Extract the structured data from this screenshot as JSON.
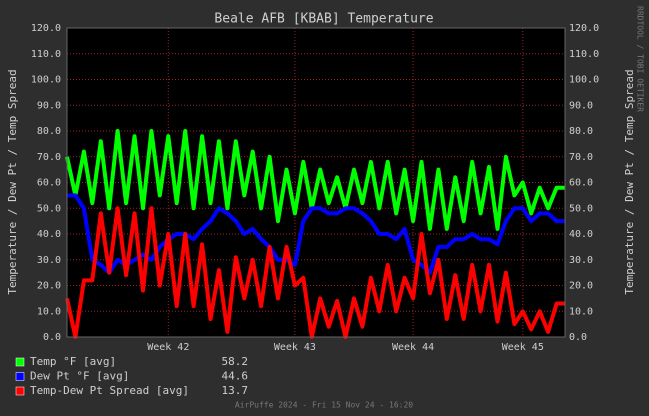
{
  "chart_data": {
    "type": "line",
    "title": "Beale AFB [KBAB] Temperature",
    "y_label": "Temperature / Dew Pt / Temp Spread",
    "side_label": "RRDTOOL / TOBI OETIKER",
    "footer": "AirPuffe 2024 - Fri 15 Nov 24 - 16:20",
    "categories": [
      null,
      null,
      null,
      null,
      null,
      null,
      null,
      null,
      null,
      null,
      null,
      null,
      "Week 42",
      null,
      null,
      null,
      null,
      null,
      null,
      null,
      null,
      null,
      null,
      null,
      null,
      null,
      null,
      "Week 43",
      null,
      null,
      null,
      null,
      null,
      null,
      null,
      null,
      null,
      null,
      null,
      null,
      null,
      "Week 44",
      null,
      null,
      null,
      null,
      null,
      null,
      null,
      null,
      null,
      null,
      null,
      null,
      "Week 45",
      null,
      null,
      null,
      null,
      null
    ],
    "series": [
      {
        "name": "Temp °F [avg]",
        "current": "58.2",
        "color": "#00ff00",
        "values": [
          70,
          55,
          72,
          52,
          76,
          50,
          80,
          52,
          78,
          50,
          80,
          55,
          78,
          52,
          80,
          50,
          78,
          52,
          76,
          50,
          76,
          55,
          72,
          50,
          70,
          45,
          65,
          48,
          68,
          50,
          65,
          52,
          62,
          50,
          65,
          52,
          68,
          50,
          68,
          48,
          65,
          45,
          68,
          42,
          65,
          42,
          62,
          45,
          68,
          48,
          66,
          42,
          70,
          55,
          60,
          48,
          58,
          50,
          58,
          58
        ]
      },
      {
        "name": "Dew Pt °F [avg]",
        "current": "44.6",
        "color": "#0000ff",
        "values": [
          55,
          55,
          50,
          30,
          28,
          25,
          30,
          28,
          30,
          32,
          30,
          35,
          38,
          40,
          40,
          38,
          42,
          45,
          50,
          48,
          45,
          40,
          42,
          38,
          35,
          30,
          30,
          28,
          45,
          50,
          50,
          48,
          48,
          50,
          50,
          48,
          45,
          40,
          40,
          38,
          42,
          30,
          28,
          25,
          35,
          35,
          38,
          38,
          40,
          38,
          38,
          36,
          45,
          50,
          50,
          45,
          48,
          48,
          45,
          45
        ]
      },
      {
        "name": "Temp-Dew Pt Spread [avg]",
        "current": "13.7",
        "color": "#ff0000",
        "values": [
          15,
          0,
          22,
          22,
          48,
          25,
          50,
          24,
          48,
          18,
          50,
          20,
          40,
          12,
          40,
          12,
          36,
          7,
          26,
          2,
          31,
          15,
          30,
          12,
          35,
          15,
          35,
          20,
          23,
          0,
          15,
          4,
          14,
          0,
          15,
          4,
          23,
          10,
          28,
          10,
          23,
          15,
          40,
          17,
          30,
          7,
          24,
          7,
          28,
          10,
          28,
          6,
          25,
          5,
          10,
          3,
          10,
          2,
          13,
          13
        ]
      }
    ],
    "ylim": [
      0,
      120
    ],
    "yticks": [
      {
        "value": 0,
        "label": "0.0"
      },
      {
        "value": 10,
        "label": "10.0"
      },
      {
        "value": 20,
        "label": "20.0"
      },
      {
        "value": 30,
        "label": "30.0"
      },
      {
        "value": 40,
        "label": "40.0"
      },
      {
        "value": 50,
        "label": "50.0"
      },
      {
        "value": 60,
        "label": "60.0"
      },
      {
        "value": 70,
        "label": "70.0"
      },
      {
        "value": 80,
        "label": "80.0"
      },
      {
        "value": 90,
        "label": "90.0"
      },
      {
        "value": 100,
        "label": "100.0"
      },
      {
        "value": 110,
        "label": "110.0"
      },
      {
        "value": 120,
        "label": "120.0"
      }
    ],
    "grid": true
  }
}
